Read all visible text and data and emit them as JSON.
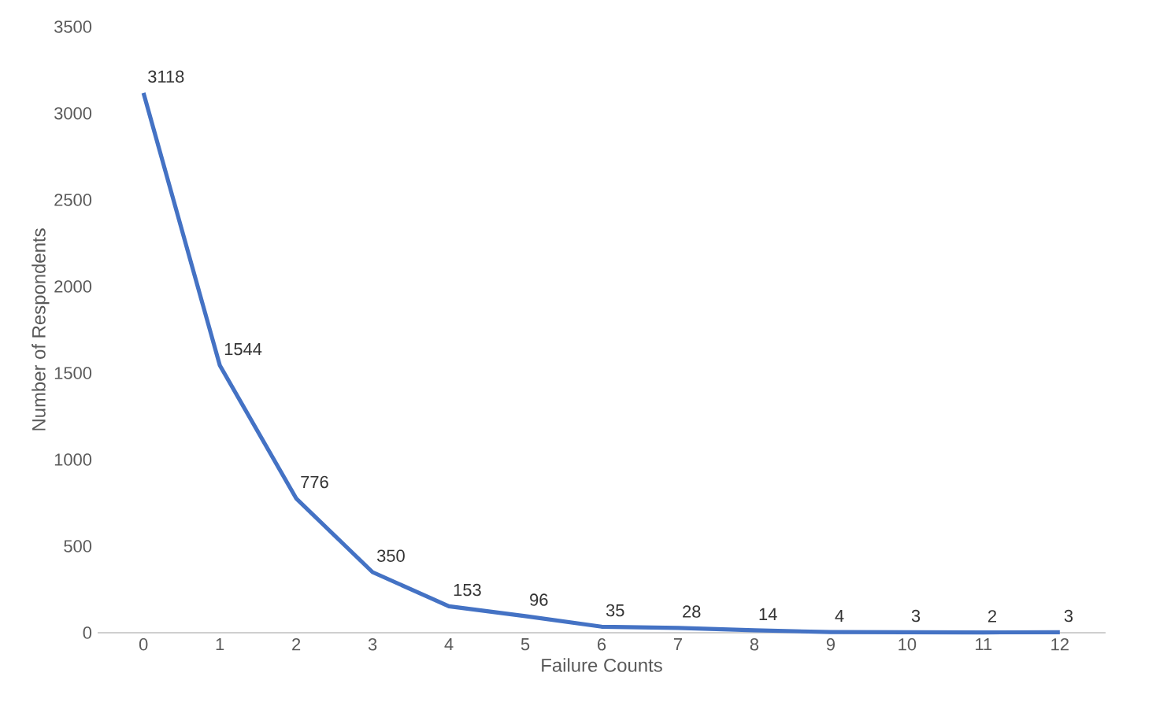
{
  "chart_data": {
    "type": "line",
    "xlabel": "Failure Counts",
    "ylabel": "Number of Respondents",
    "categories": [
      "0",
      "1",
      "2",
      "3",
      "4",
      "5",
      "6",
      "7",
      "8",
      "9",
      "10",
      "11",
      "12"
    ],
    "values": [
      3118,
      1544,
      776,
      350,
      153,
      96,
      35,
      28,
      14,
      4,
      3,
      2,
      3
    ],
    "color": "#4472c4",
    "ylim": [
      0,
      3500
    ],
    "yticks": [
      0,
      500,
      1000,
      1500,
      2000,
      2500,
      3000,
      3500
    ],
    "data_labels": true,
    "marker": "none",
    "line_style": "solid"
  }
}
